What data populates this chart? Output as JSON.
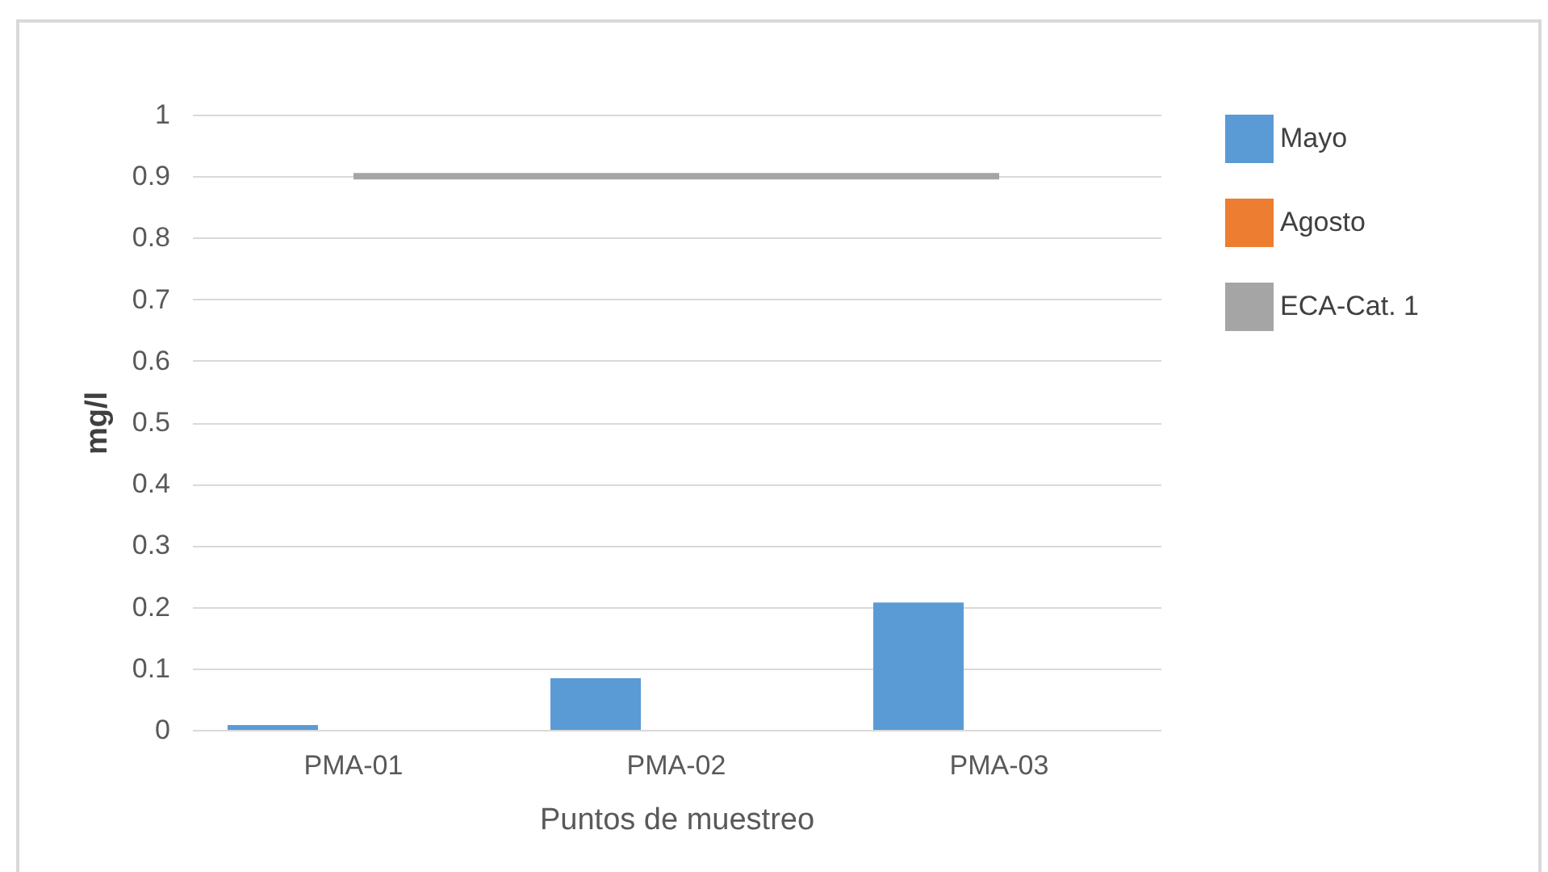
{
  "chart_data": {
    "type": "bar",
    "xlabel": "Puntos de muestreo",
    "ylabel": "mg/l",
    "categories": [
      "PMA-01",
      "PMA-02",
      "PMA-03"
    ],
    "series": [
      {
        "name": "Mayo",
        "color": "#5b9bd5",
        "values": [
          0.008,
          0.084,
          0.207
        ]
      },
      {
        "name": "Agosto",
        "color": "#ed7d31",
        "values": [
          0,
          0,
          0
        ]
      },
      {
        "name": "ECA-Cat. 1",
        "color": "#a5a5a5",
        "type": "line",
        "values": [
          0.9,
          0.9,
          0.9
        ]
      }
    ],
    "ylim": [
      0,
      1
    ],
    "yticks": [
      0,
      0.1,
      0.2,
      0.3,
      0.4,
      0.5,
      0.6,
      0.7,
      0.8,
      0.9,
      1
    ],
    "grid": "y",
    "legend": "right"
  }
}
